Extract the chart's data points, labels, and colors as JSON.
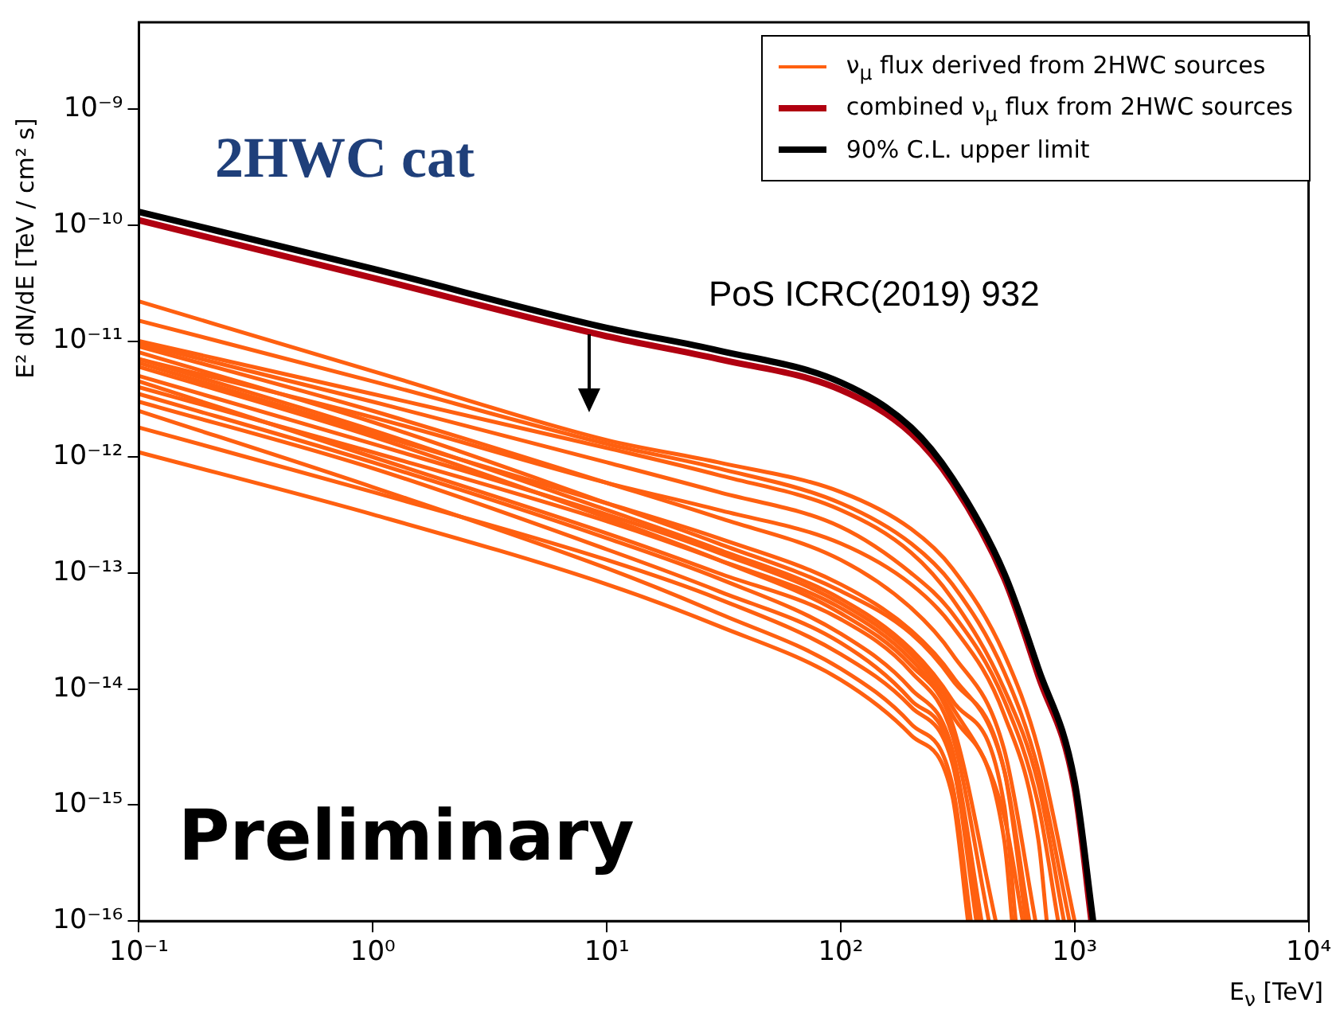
{
  "chart_data": {
    "type": "line",
    "xlabel": "E$_{ν}$ [TeV]",
    "ylabel": "E² dN/dE [TeV / cm² s]",
    "log": "xy",
    "grid": false,
    "legend": "top right",
    "marker": "none",
    "line_style": "solid",
    "xlim": [
      0.1,
      10000
    ],
    "ylim": [
      1e-16,
      5.6e-09
    ],
    "xticks": [
      {
        "value": 0.1,
        "label": "10⁻¹"
      },
      {
        "value": 1,
        "label": "10⁰"
      },
      {
        "value": 10,
        "label": "10¹"
      },
      {
        "value": 100,
        "label": "10²"
      },
      {
        "value": 1000,
        "label": "10³"
      },
      {
        "value": 10000,
        "label": "10⁴"
      }
    ],
    "yticks": [
      {
        "value": 1e-16,
        "label": "10⁻¹⁶"
      },
      {
        "value": 1e-15,
        "label": "10⁻¹⁵"
      },
      {
        "value": 1e-14,
        "label": "10⁻¹⁴"
      },
      {
        "value": 1e-13,
        "label": "10⁻¹³"
      },
      {
        "value": 1e-12,
        "label": "10⁻¹²"
      },
      {
        "value": 1e-11,
        "label": "10⁻¹¹"
      },
      {
        "value": 1e-10,
        "label": "10⁻¹⁰"
      },
      {
        "value": 1e-09,
        "label": "10⁻⁹"
      }
    ],
    "annotations": [
      "2HWC cat",
      "PoS ICRC(2019) 932",
      "Preliminary"
    ],
    "series": [
      {
        "name": "ν$_{μ}$ flux derived from 2HWC sources",
        "color": "#ff6010",
        "x": [
          0.1,
          1,
          10,
          30,
          100,
          200,
          300,
          500,
          700,
          1000
        ],
        "values": [
          2.2e-11,
          5.5e-12,
          1.4e-12,
          9e-13,
          5e-13,
          2.4e-13,
          1.1e-13,
          2e-14,
          3e-15,
          1e-16
        ]
      },
      {
        "color": "#ff6010",
        "x": [
          0.1,
          1,
          10,
          30,
          100,
          200,
          300,
          500,
          700,
          950
        ],
        "values": [
          1.5e-11,
          4.5e-12,
          1.3e-12,
          8e-13,
          4e-13,
          1.8e-13,
          8e-14,
          1.4e-14,
          2e-15,
          1e-16
        ]
      },
      {
        "color": "#ff6010",
        "x": [
          0.1,
          1,
          10,
          30,
          100,
          200,
          300,
          500,
          700,
          900
        ],
        "values": [
          1e-11,
          3.5e-12,
          1.2e-12,
          7e-13,
          3.5e-13,
          1.5e-13,
          6e-14,
          1e-14,
          1.5e-15,
          1e-16
        ]
      },
      {
        "color": "#ff6010",
        "x": [
          0.1,
          1,
          10,
          30,
          100,
          200,
          300,
          500,
          700,
          850
        ],
        "values": [
          9.5e-12,
          3e-12,
          9e-13,
          5e-13,
          2.5e-13,
          1e-13,
          4.5e-14,
          8e-15,
          1e-15,
          1e-16
        ]
      },
      {
        "color": "#ff6010",
        "x": [
          0.1,
          1,
          10,
          30,
          100,
          200,
          300,
          500,
          700,
          760
        ],
        "values": [
          7e-12,
          2.2e-12,
          6e-13,
          3.5e-13,
          1.8e-13,
          8e-14,
          3.5e-14,
          6e-15,
          5e-16,
          1e-16
        ]
      },
      {
        "color": "#ff6010",
        "x": [
          0.1,
          1,
          10,
          30,
          100,
          200,
          300,
          500,
          680
        ],
        "values": [
          9e-12,
          2.5e-12,
          6e-13,
          3e-13,
          1.3e-13,
          5e-14,
          2e-14,
          3e-15,
          1e-16
        ]
      },
      {
        "color": "#ff6010",
        "x": [
          0.1,
          1,
          10,
          30,
          100,
          200,
          300,
          500,
          640
        ],
        "values": [
          6.5e-12,
          1.6e-12,
          4e-13,
          2e-13,
          8e-14,
          3.2e-14,
          1.3e-14,
          2e-15,
          1e-16
        ]
      },
      {
        "color": "#ff6010",
        "x": [
          0.1,
          1,
          10,
          30,
          100,
          200,
          300,
          500,
          620
        ],
        "values": [
          8e-12,
          2e-12,
          4e-13,
          1.8e-13,
          7e-14,
          3e-14,
          1.2e-14,
          2e-15,
          1e-16
        ]
      },
      {
        "color": "#ff6010",
        "x": [
          0.1,
          1,
          10,
          30,
          100,
          200,
          300,
          500,
          600
        ],
        "values": [
          5e-12,
          1.3e-12,
          3.2e-13,
          1.5e-13,
          5.5e-14,
          2e-14,
          7e-15,
          8e-16,
          1e-16
        ]
      },
      {
        "color": "#ff6010",
        "x": [
          0.1,
          1,
          10,
          30,
          100,
          200,
          300,
          500,
          560
        ],
        "values": [
          7e-12,
          1.7e-12,
          3.5e-13,
          1.6e-13,
          6e-14,
          2.2e-14,
          8e-15,
          1e-15,
          1e-16
        ]
      },
      {
        "color": "#ff6010",
        "x": [
          0.1,
          1,
          10,
          30,
          100,
          200,
          300,
          500,
          540
        ],
        "values": [
          4e-12,
          1.1e-12,
          2.8e-13,
          1.3e-13,
          5e-14,
          1.8e-14,
          6e-15,
          5e-16,
          1e-16
        ]
      },
      {
        "color": "#ff6010",
        "x": [
          0.1,
          1,
          10,
          30,
          100,
          200,
          300,
          460
        ],
        "values": [
          6e-12,
          1.5e-12,
          3e-13,
          1.3e-13,
          4.5e-14,
          1.6e-14,
          5e-15,
          1e-16
        ]
      },
      {
        "color": "#ff6010",
        "x": [
          0.1,
          1,
          10,
          30,
          100,
          200,
          300,
          430
        ],
        "values": [
          4.5e-12,
          1e-12,
          2.2e-13,
          1e-13,
          4e-14,
          1.4e-14,
          4e-15,
          1e-16
        ]
      },
      {
        "color": "#ff6010",
        "x": [
          0.1,
          1,
          10,
          30,
          100,
          200,
          300,
          400
        ],
        "values": [
          3.5e-12,
          9e-13,
          2e-13,
          9e-14,
          3e-14,
          1e-14,
          3e-15,
          1e-16
        ]
      },
      {
        "color": "#ff6010",
        "x": [
          0.1,
          1,
          10,
          30,
          100,
          200,
          300,
          390
        ],
        "values": [
          1.8e-12,
          5e-13,
          1.3e-13,
          6e-14,
          2e-14,
          7e-15,
          2.3e-15,
          1e-16
        ]
      },
      {
        "color": "#ff6010",
        "x": [
          0.1,
          1,
          10,
          30,
          100,
          200,
          300,
          380
        ],
        "values": [
          3e-12,
          8e-13,
          1.6e-13,
          7e-14,
          2.5e-14,
          8e-15,
          2.5e-15,
          1e-16
        ]
      },
      {
        "color": "#ff6010",
        "x": [
          0.1,
          1,
          10,
          30,
          100,
          200,
          300,
          360
        ],
        "values": [
          2.5e-12,
          5.5e-13,
          1.1e-13,
          4.5e-14,
          1.5e-14,
          5e-15,
          1.5e-15,
          1e-16
        ]
      },
      {
        "color": "#ff6010",
        "x": [
          0.1,
          1,
          10,
          30,
          100,
          200,
          300,
          350
        ],
        "values": [
          1.1e-12,
          3.2e-13,
          8e-14,
          3.5e-14,
          1.2e-14,
          4e-15,
          1.2e-15,
          1e-16
        ]
      },
      {
        "name": "combined ν$_{μ}$ flux from 2HWC sources",
        "color": "#b00010",
        "x": [
          0.1,
          1,
          10,
          30,
          100,
          200,
          300,
          500,
          700,
          1000,
          1180
        ],
        "values": [
          1.1e-10,
          3.5e-11,
          1.1e-11,
          7e-12,
          3.8e-12,
          1.6e-12,
          6e-13,
          9e-14,
          1.3e-14,
          1.4e-15,
          1e-16
        ]
      },
      {
        "name": "90% C.L. upper limit",
        "color": "#000000",
        "x": [
          0.1,
          1,
          10,
          30,
          100,
          200,
          300,
          500,
          700,
          1000,
          1200
        ],
        "values": [
          1.3e-10,
          4.2e-11,
          1.3e-11,
          8.3e-12,
          4.4e-12,
          1.8e-12,
          6.6e-13,
          1e-13,
          1.5e-14,
          1.6e-15,
          1e-16
        ]
      }
    ]
  }
}
